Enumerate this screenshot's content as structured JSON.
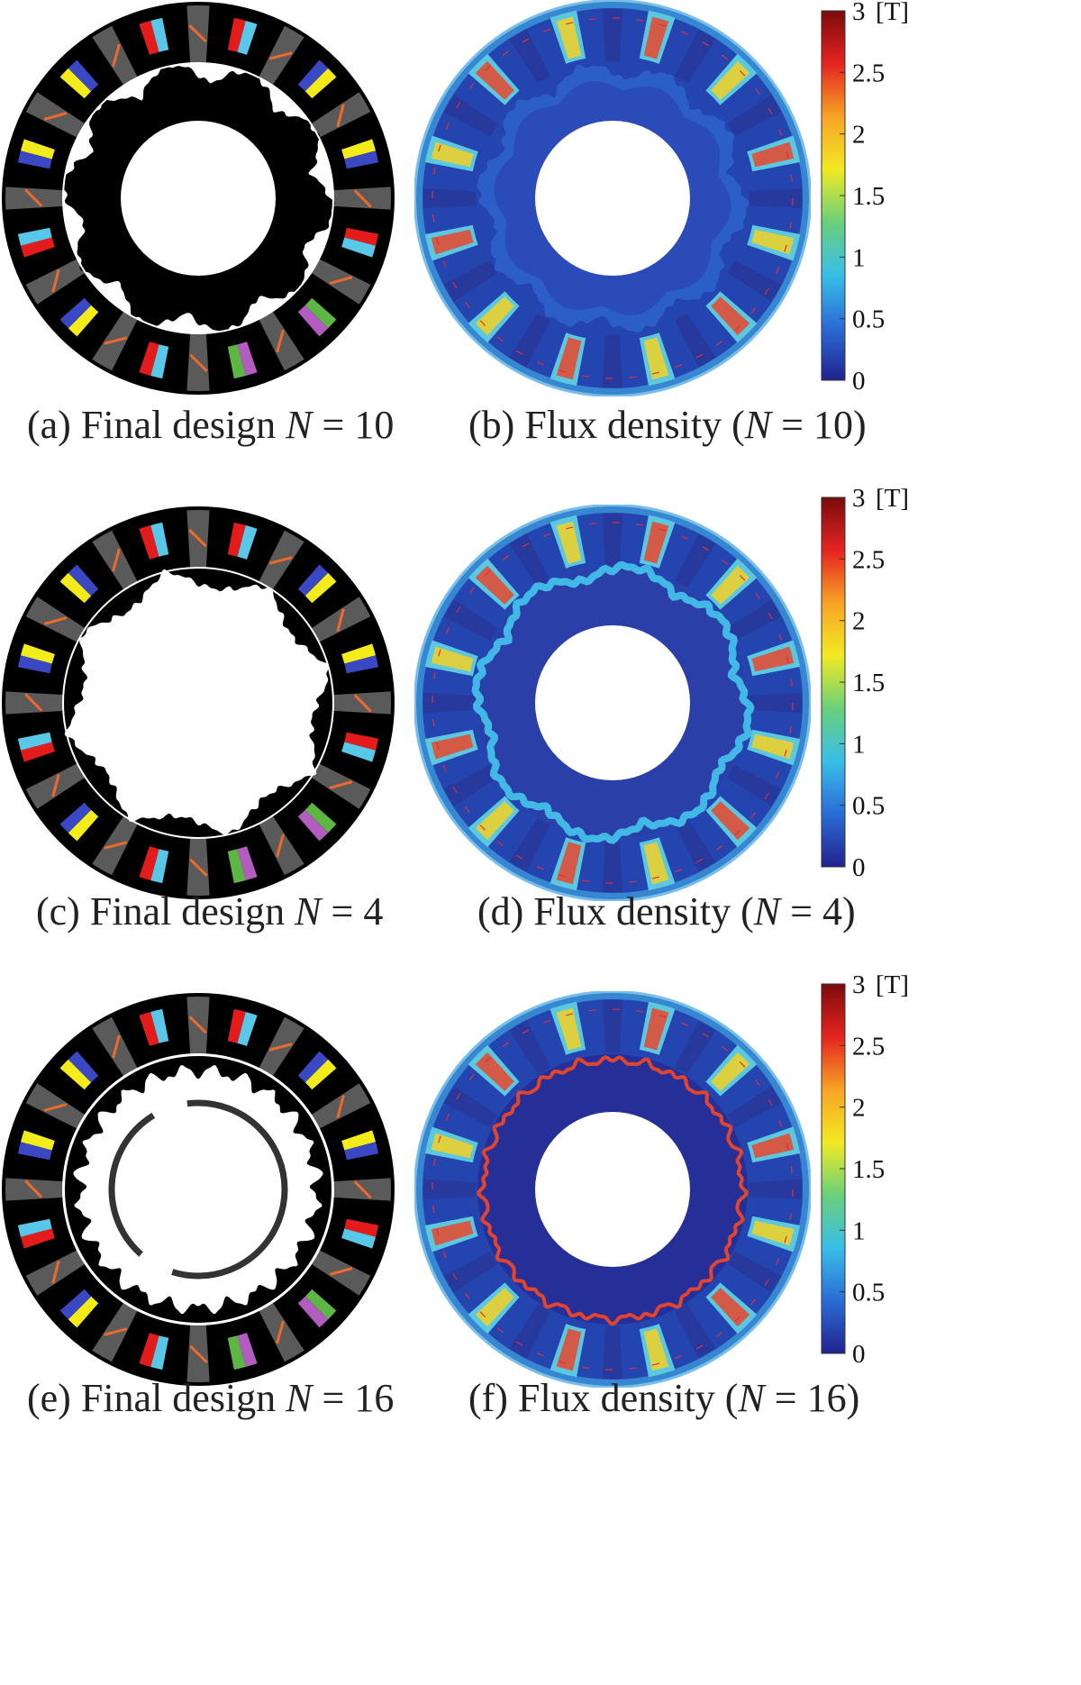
{
  "rows": [
    {
      "design_caption": {
        "letter": "(a)",
        "text": "Final design",
        "var": "N",
        "eq": "= 10"
      },
      "flux_caption": {
        "letter": "(b)",
        "text": "Flux density (",
        "var": "N",
        "eq": "= 10)"
      },
      "design_variant": "solid-gear",
      "flux_variant": "n10"
    },
    {
      "design_caption": {
        "letter": "(c)",
        "text": "Final design",
        "var": "N",
        "eq": "= 4"
      },
      "flux_caption": {
        "letter": "(d)",
        "text": "Flux density (",
        "var": "N",
        "eq": "= 4)"
      },
      "design_variant": "open-gear",
      "flux_variant": "n4"
    },
    {
      "design_caption": {
        "letter": "(e)",
        "text": "Final design",
        "var": "N",
        "eq": "= 16"
      },
      "flux_caption": {
        "letter": "(f)",
        "text": "Flux density (",
        "var": "N",
        "eq": "= 16)"
      },
      "design_variant": "ring",
      "flux_variant": "n16"
    }
  ],
  "colorbar": {
    "unit": "[T]",
    "ticks": [
      "3",
      "2.5",
      "2",
      "1.5",
      "1",
      "0.5",
      "0"
    ],
    "colors": [
      "#7a0b0b",
      "#e52420",
      "#f7a325",
      "#f2ea22",
      "#6ad07a",
      "#39bfe8",
      "#2a6cd6",
      "#22228f"
    ]
  },
  "magnet_colors": [
    "#e41b1b",
    "#59c8e8",
    "#f4ec1a",
    "#3a49c3",
    "#b25cbf",
    "#5db544"
  ],
  "colors": {
    "stator": "#000000",
    "pm_gray": "#5a5a5a",
    "arrow": "#ee6a2c",
    "flux_bg": "#2444b0"
  }
}
